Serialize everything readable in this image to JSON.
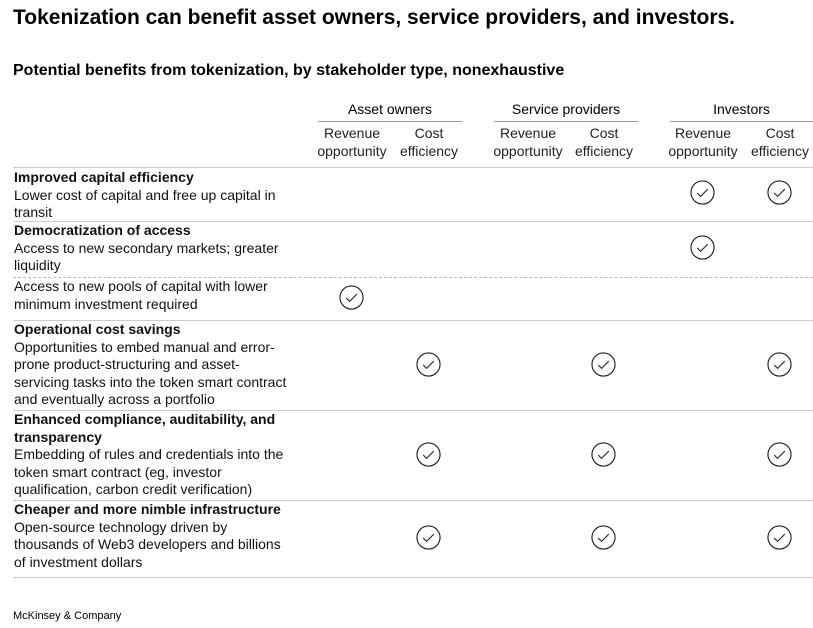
{
  "title": "Tokenization can benefit asset owners, service providers, and investors.",
  "subtitle": "Potential benefits from tokenization, by stakeholder type, nonexhaustive",
  "groups": [
    "Asset owners",
    "Service providers",
    "Investors"
  ],
  "columns": [
    {
      "l1": "Revenue",
      "l2": "opportunity"
    },
    {
      "l1": "Cost",
      "l2": "efficiency"
    },
    {
      "l1": "Revenue",
      "l2": "opportunity"
    },
    {
      "l1": "Cost",
      "l2": "efficiency"
    },
    {
      "l1": "Revenue",
      "l2": "opportunity"
    },
    {
      "l1": "Cost",
      "l2": "efficiency"
    }
  ],
  "rows": [
    {
      "heading": "Improved capital efficiency",
      "text": "Lower cost of capital and free up capital in transit",
      "checks": [
        false,
        false,
        false,
        false,
        true,
        true
      ]
    },
    {
      "heading": "Democratization of access",
      "text": "Access to new secondary markets; greater liquidity",
      "checks": [
        false,
        false,
        false,
        false,
        true,
        false
      ]
    },
    {
      "heading": "",
      "text": "Access to new pools of capital with lower minimum investment required",
      "checks": [
        true,
        false,
        false,
        false,
        false,
        false
      ]
    },
    {
      "heading": "Operational cost savings",
      "text": "Opportunities to embed manual and error-prone product-structuring and asset-servicing tasks into the token smart contract and eventually across a portfolio",
      "checks": [
        false,
        true,
        false,
        true,
        false,
        true
      ]
    },
    {
      "heading": "Enhanced compliance, auditability, and transparency",
      "text": "Embedding of rules and credentials into the token smart contract (eg, investor qualification, carbon credit verification)",
      "checks": [
        false,
        true,
        false,
        true,
        false,
        true
      ]
    },
    {
      "heading": "Cheaper and more nimble infrastructure",
      "text": "Open-source technology driven by thousands of Web3 developers and billions of investment dollars",
      "checks": [
        false,
        true,
        false,
        true,
        false,
        true
      ]
    }
  ],
  "check_icon": "check-circle-icon",
  "footer": "McKinsey & Company"
}
